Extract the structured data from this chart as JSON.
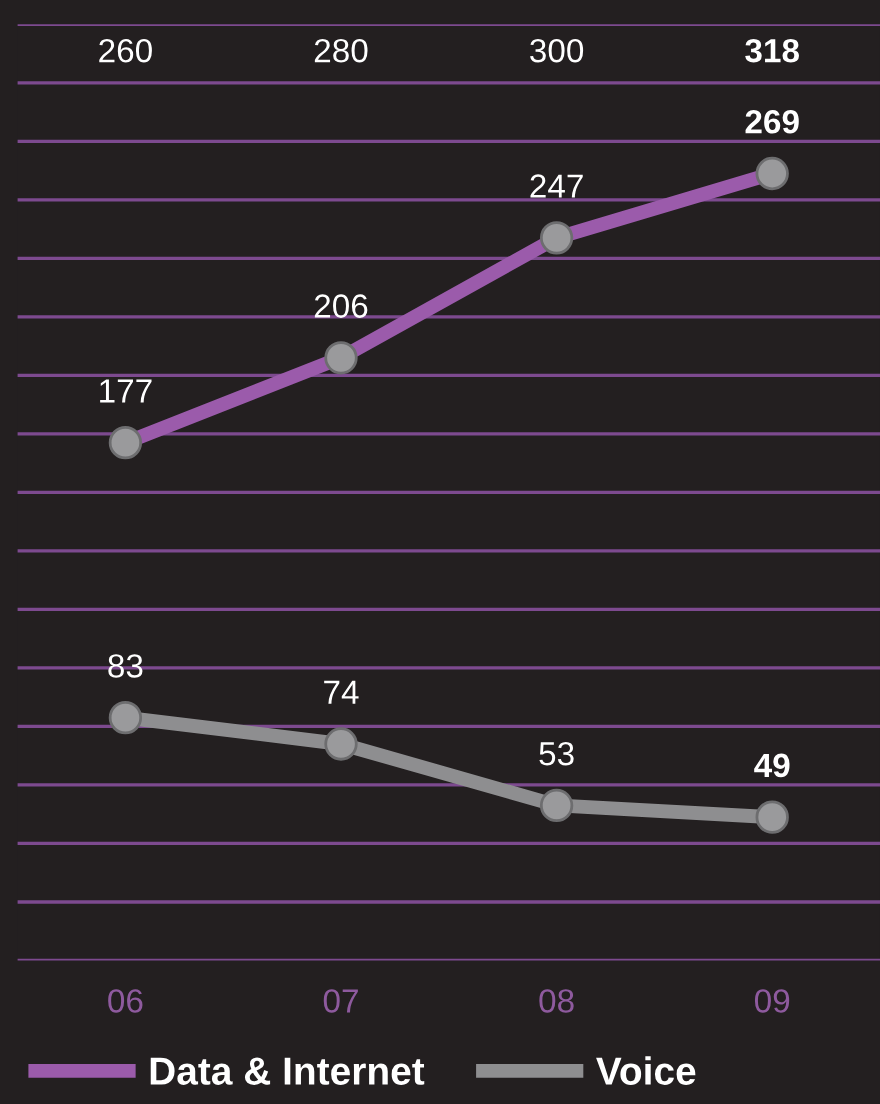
{
  "chart_data": {
    "type": "line",
    "categories": [
      "06",
      "07",
      "08",
      "09"
    ],
    "series": [
      {
        "name": "Data & Internet",
        "color": "#9b5bab",
        "values": [
          177,
          206,
          247,
          269
        ]
      },
      {
        "name": "Voice",
        "color": "#8e8e90",
        "values": [
          83,
          74,
          53,
          49
        ]
      }
    ],
    "totals": [
      "260",
      "280",
      "300",
      "318"
    ],
    "ylim": [
      0,
      320
    ],
    "yticks": [
      {
        "value": 0,
        "label": null
      },
      {
        "value": 20,
        "label": null
      },
      {
        "value": 40,
        "label": null
      },
      {
        "value": 60,
        "label": null
      },
      {
        "value": 80,
        "label": null
      },
      {
        "value": 100,
        "label": null
      },
      {
        "value": 120,
        "label": null
      },
      {
        "value": 140,
        "label": null
      },
      {
        "value": 160,
        "label": null
      },
      {
        "value": 180,
        "label": null
      },
      {
        "value": 200,
        "label": null
      },
      {
        "value": 220,
        "label": null
      },
      {
        "value": 240,
        "label": null
      },
      {
        "value": 260,
        "label": null
      },
      {
        "value": 280,
        "label": null
      },
      {
        "value": 300,
        "label": null
      },
      {
        "value": 320,
        "label": null
      }
    ],
    "data_labels": true,
    "marker": "circle",
    "line_style": "solid",
    "grid": "y",
    "legend": "bottom left",
    "tick_labels": "x"
  }
}
